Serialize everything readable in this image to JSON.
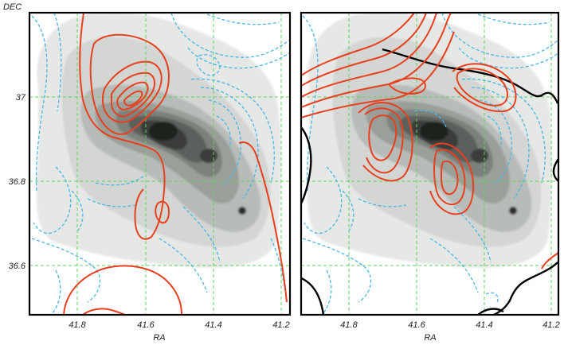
{
  "chart_data": [
    {
      "type": "contour",
      "panel": "left",
      "ylabel": "DEC",
      "xlabel": "RA",
      "x_ticks": [
        "41.8",
        "41.6",
        "41.4",
        "41.2"
      ],
      "y_ticks": [
        "37",
        "36.8",
        "36.6"
      ],
      "xlim": [
        41.95,
        41.19
      ],
      "ylim": [
        36.48,
        37.2
      ],
      "grid": true,
      "layers": [
        "greyscale emission",
        "red solid contours",
        "blue dashed contours"
      ],
      "colors": {
        "red": "#e8401f",
        "blue": "#49b6e6",
        "grid": "#5fd35f"
      }
    },
    {
      "type": "contour",
      "panel": "right",
      "xlabel": "RA",
      "x_ticks": [
        "41.8",
        "41.6",
        "41.4",
        "41.2"
      ],
      "xlim": [
        41.95,
        41.19
      ],
      "ylim": [
        36.48,
        37.2
      ],
      "grid": true,
      "layers": [
        "greyscale emission",
        "red solid contours",
        "blue dashed contours",
        "black solid contour"
      ],
      "colors": {
        "red": "#e8401f",
        "blue": "#49b6e6",
        "black": "#000000",
        "grid": "#5fd35f"
      }
    }
  ]
}
